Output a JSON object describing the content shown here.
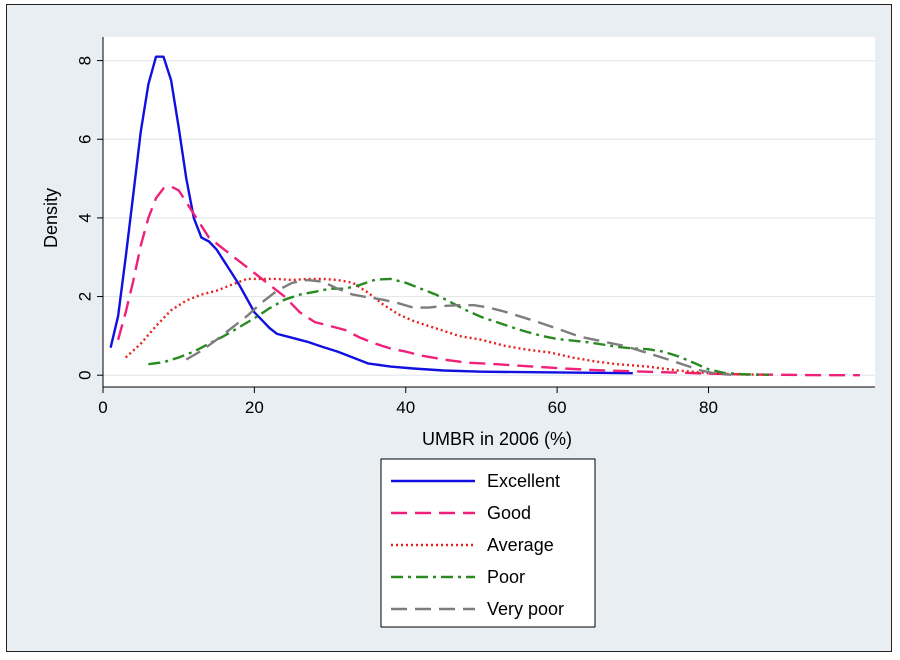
{
  "chart_data": {
    "type": "line",
    "title": "",
    "xlabel": "UMBR in 2006 (%)",
    "ylabel": "Density",
    "xlim": [
      0,
      102
    ],
    "ylim": [
      -0.3,
      8.6
    ],
    "x_ticks": [
      0,
      20,
      40,
      60,
      80
    ],
    "y_ticks": [
      0,
      2,
      4,
      6,
      8
    ],
    "grid": "horizontal",
    "legend_position": "bottom-center",
    "background": "#e8eef2",
    "series": [
      {
        "name": "Excellent",
        "color": "#1010e0",
        "dash": "solid",
        "points": [
          [
            1,
            0.7
          ],
          [
            2,
            1.5
          ],
          [
            3,
            3.0
          ],
          [
            4,
            4.6
          ],
          [
            5,
            6.2
          ],
          [
            6,
            7.4
          ],
          [
            7,
            8.1
          ],
          [
            8,
            8.1
          ],
          [
            9,
            7.5
          ],
          [
            10,
            6.3
          ],
          [
            11,
            5.0
          ],
          [
            12,
            4.0
          ],
          [
            13,
            3.5
          ],
          [
            14,
            3.4
          ],
          [
            15,
            3.2
          ],
          [
            16,
            2.9
          ],
          [
            17,
            2.6
          ],
          [
            18,
            2.3
          ],
          [
            19,
            1.95
          ],
          [
            20,
            1.6
          ],
          [
            21,
            1.4
          ],
          [
            22,
            1.2
          ],
          [
            23,
            1.05
          ],
          [
            25,
            0.95
          ],
          [
            27,
            0.85
          ],
          [
            29,
            0.72
          ],
          [
            31,
            0.6
          ],
          [
            33,
            0.45
          ],
          [
            35,
            0.3
          ],
          [
            38,
            0.22
          ],
          [
            41,
            0.17
          ],
          [
            45,
            0.12
          ],
          [
            50,
            0.09
          ],
          [
            55,
            0.08
          ],
          [
            60,
            0.07
          ],
          [
            65,
            0.06
          ],
          [
            70,
            0.05
          ]
        ]
      },
      {
        "name": "Good",
        "color": "#f0207a",
        "dash": "long-dash",
        "points": [
          [
            2,
            0.9
          ],
          [
            3,
            1.6
          ],
          [
            4,
            2.4
          ],
          [
            5,
            3.3
          ],
          [
            6,
            4.0
          ],
          [
            7,
            4.5
          ],
          [
            8,
            4.75
          ],
          [
            9,
            4.8
          ],
          [
            10,
            4.7
          ],
          [
            11,
            4.4
          ],
          [
            12,
            4.1
          ],
          [
            13,
            3.8
          ],
          [
            14,
            3.5
          ],
          [
            16,
            3.2
          ],
          [
            18,
            2.9
          ],
          [
            20,
            2.6
          ],
          [
            22,
            2.3
          ],
          [
            24,
            2.0
          ],
          [
            26,
            1.6
          ],
          [
            28,
            1.35
          ],
          [
            30,
            1.25
          ],
          [
            32,
            1.15
          ],
          [
            34,
            0.95
          ],
          [
            36,
            0.8
          ],
          [
            38,
            0.68
          ],
          [
            40,
            0.6
          ],
          [
            42,
            0.5
          ],
          [
            45,
            0.4
          ],
          [
            48,
            0.32
          ],
          [
            52,
            0.28
          ],
          [
            56,
            0.23
          ],
          [
            60,
            0.18
          ],
          [
            65,
            0.13
          ],
          [
            70,
            0.1
          ],
          [
            75,
            0.07
          ],
          [
            80,
            0.04
          ],
          [
            85,
            0.02
          ],
          [
            90,
            0.01
          ],
          [
            95,
            0.0
          ],
          [
            100,
            0.0
          ]
        ]
      },
      {
        "name": "Average",
        "color": "#e8201e",
        "dash": "dotted",
        "points": [
          [
            3,
            0.45
          ],
          [
            5,
            0.8
          ],
          [
            7,
            1.25
          ],
          [
            9,
            1.65
          ],
          [
            11,
            1.9
          ],
          [
            13,
            2.05
          ],
          [
            15,
            2.15
          ],
          [
            17,
            2.3
          ],
          [
            19,
            2.45
          ],
          [
            21,
            2.45
          ],
          [
            23,
            2.45
          ],
          [
            25,
            2.42
          ],
          [
            27,
            2.45
          ],
          [
            29,
            2.45
          ],
          [
            31,
            2.42
          ],
          [
            33,
            2.35
          ],
          [
            35,
            2.1
          ],
          [
            37,
            1.8
          ],
          [
            39,
            1.55
          ],
          [
            41,
            1.38
          ],
          [
            43,
            1.25
          ],
          [
            45,
            1.13
          ],
          [
            47,
            1.0
          ],
          [
            50,
            0.9
          ],
          [
            53,
            0.75
          ],
          [
            56,
            0.65
          ],
          [
            59,
            0.58
          ],
          [
            62,
            0.45
          ],
          [
            65,
            0.35
          ],
          [
            68,
            0.28
          ],
          [
            72,
            0.22
          ],
          [
            76,
            0.12
          ],
          [
            80,
            0.05
          ],
          [
            84,
            0.02
          ],
          [
            88,
            0.01
          ]
        ]
      },
      {
        "name": "Poor",
        "color": "#2a8a22",
        "dash": "dash-dot",
        "points": [
          [
            6,
            0.28
          ],
          [
            8,
            0.33
          ],
          [
            10,
            0.45
          ],
          [
            12,
            0.6
          ],
          [
            14,
            0.8
          ],
          [
            16,
            1.0
          ],
          [
            18,
            1.22
          ],
          [
            20,
            1.45
          ],
          [
            22,
            1.7
          ],
          [
            24,
            1.92
          ],
          [
            26,
            2.05
          ],
          [
            28,
            2.12
          ],
          [
            30,
            2.2
          ],
          [
            32,
            2.2
          ],
          [
            34,
            2.3
          ],
          [
            36,
            2.43
          ],
          [
            38,
            2.45
          ],
          [
            40,
            2.35
          ],
          [
            42,
            2.2
          ],
          [
            44,
            2.05
          ],
          [
            46,
            1.85
          ],
          [
            48,
            1.65
          ],
          [
            50,
            1.48
          ],
          [
            52,
            1.35
          ],
          [
            54,
            1.22
          ],
          [
            56,
            1.1
          ],
          [
            58,
            1.0
          ],
          [
            60,
            0.92
          ],
          [
            62,
            0.88
          ],
          [
            64,
            0.84
          ],
          [
            66,
            0.78
          ],
          [
            68,
            0.72
          ],
          [
            70,
            0.68
          ],
          [
            72,
            0.66
          ],
          [
            74,
            0.6
          ],
          [
            76,
            0.48
          ],
          [
            78,
            0.32
          ],
          [
            80,
            0.15
          ],
          [
            82,
            0.06
          ],
          [
            85,
            0.02
          ],
          [
            88,
            0.01
          ]
        ]
      },
      {
        "name": "Very poor",
        "color": "#7d7d7d",
        "dash": "long-dash",
        "points": [
          [
            11,
            0.4
          ],
          [
            13,
            0.62
          ],
          [
            15,
            0.9
          ],
          [
            17,
            1.2
          ],
          [
            19,
            1.5
          ],
          [
            21,
            1.85
          ],
          [
            23,
            2.15
          ],
          [
            25,
            2.35
          ],
          [
            27,
            2.42
          ],
          [
            29,
            2.38
          ],
          [
            31,
            2.2
          ],
          [
            33,
            2.05
          ],
          [
            35,
            1.98
          ],
          [
            37,
            1.92
          ],
          [
            39,
            1.83
          ],
          [
            41,
            1.72
          ],
          [
            43,
            1.72
          ],
          [
            45,
            1.76
          ],
          [
            47,
            1.78
          ],
          [
            49,
            1.78
          ],
          [
            51,
            1.72
          ],
          [
            53,
            1.62
          ],
          [
            55,
            1.5
          ],
          [
            57,
            1.38
          ],
          [
            59,
            1.25
          ],
          [
            61,
            1.12
          ],
          [
            63,
            0.98
          ],
          [
            65,
            0.9
          ],
          [
            67,
            0.82
          ],
          [
            69,
            0.74
          ],
          [
            71,
            0.62
          ],
          [
            73,
            0.5
          ],
          [
            75,
            0.38
          ],
          [
            77,
            0.25
          ],
          [
            79,
            0.12
          ],
          [
            81,
            0.04
          ],
          [
            83,
            0.01
          ]
        ]
      }
    ]
  }
}
